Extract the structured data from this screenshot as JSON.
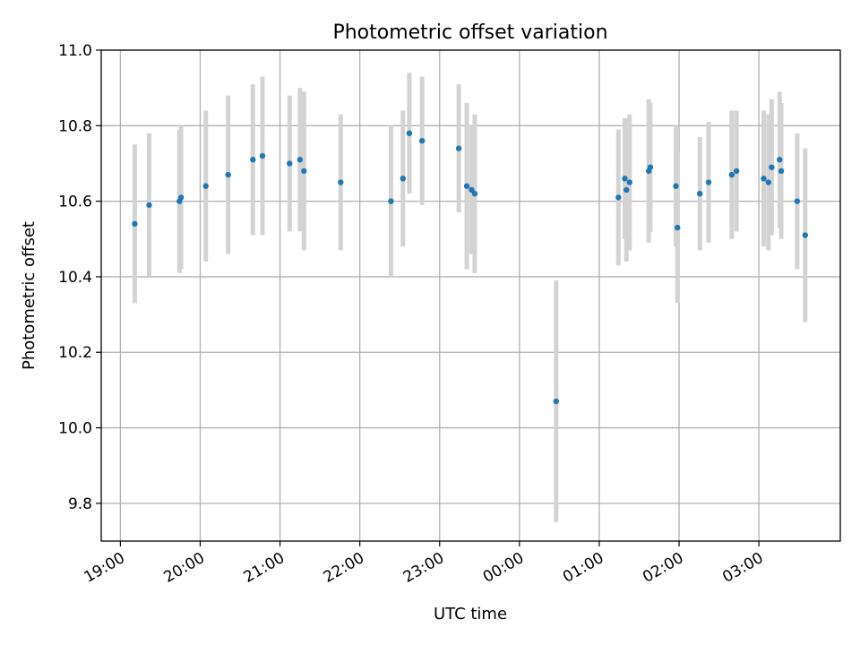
{
  "chart_data": {
    "type": "scatter",
    "title": "Photometric offset variation",
    "xlabel": "UTC time",
    "ylabel": "Photometric offset",
    "grid": true,
    "x_unit": "hours since 19:00 UTC",
    "xlim": [
      -0.24,
      9.02
    ],
    "ylim": [
      9.7,
      11.0
    ],
    "x_ticks": [
      {
        "value": 0,
        "label": "19:00"
      },
      {
        "value": 1,
        "label": "20:00"
      },
      {
        "value": 2,
        "label": "21:00"
      },
      {
        "value": 3,
        "label": "22:00"
      },
      {
        "value": 4,
        "label": "23:00"
      },
      {
        "value": 5,
        "label": "00:00"
      },
      {
        "value": 6,
        "label": "01:00"
      },
      {
        "value": 7,
        "label": "02:00"
      },
      {
        "value": 8,
        "label": "03:00"
      }
    ],
    "y_ticks": [
      {
        "value": 9.8,
        "label": "9.8"
      },
      {
        "value": 10.0,
        "label": "10.0"
      },
      {
        "value": 10.2,
        "label": "10.2"
      },
      {
        "value": 10.4,
        "label": "10.4"
      },
      {
        "value": 10.6,
        "label": "10.6"
      },
      {
        "value": 10.8,
        "label": "10.8"
      },
      {
        "value": 11.0,
        "label": "11.0"
      }
    ],
    "colors": {
      "point": "#1f77b4",
      "errorbar": "#d3d3d3"
    },
    "points": [
      {
        "x": 0.18,
        "y": 10.54,
        "err": 0.21
      },
      {
        "x": 0.36,
        "y": 10.59,
        "err": 0.19
      },
      {
        "x": 0.74,
        "y": 10.6,
        "err": 0.19
      },
      {
        "x": 0.76,
        "y": 10.61,
        "err": 0.19
      },
      {
        "x": 1.07,
        "y": 10.64,
        "err": 0.2
      },
      {
        "x": 1.35,
        "y": 10.67,
        "err": 0.21
      },
      {
        "x": 1.66,
        "y": 10.71,
        "err": 0.2
      },
      {
        "x": 1.78,
        "y": 10.72,
        "err": 0.21
      },
      {
        "x": 2.12,
        "y": 10.7,
        "err": 0.18
      },
      {
        "x": 2.25,
        "y": 10.71,
        "err": 0.19
      },
      {
        "x": 2.3,
        "y": 10.68,
        "err": 0.21
      },
      {
        "x": 2.76,
        "y": 10.65,
        "err": 0.18
      },
      {
        "x": 3.39,
        "y": 10.6,
        "err": 0.2
      },
      {
        "x": 3.54,
        "y": 10.66,
        "err": 0.18
      },
      {
        "x": 3.62,
        "y": 10.78,
        "err": 0.16
      },
      {
        "x": 3.78,
        "y": 10.76,
        "err": 0.17
      },
      {
        "x": 4.24,
        "y": 10.74,
        "err": 0.17
      },
      {
        "x": 4.34,
        "y": 10.64,
        "err": 0.22
      },
      {
        "x": 4.4,
        "y": 10.63,
        "err": 0.17
      },
      {
        "x": 4.44,
        "y": 10.62,
        "err": 0.21
      },
      {
        "x": 5.46,
        "y": 10.07,
        "err": 0.32
      },
      {
        "x": 6.24,
        "y": 10.61,
        "err": 0.18
      },
      {
        "x": 6.32,
        "y": 10.66,
        "err": 0.16
      },
      {
        "x": 6.34,
        "y": 10.63,
        "err": 0.19
      },
      {
        "x": 6.38,
        "y": 10.65,
        "err": 0.18
      },
      {
        "x": 6.62,
        "y": 10.68,
        "err": 0.19
      },
      {
        "x": 6.64,
        "y": 10.69,
        "err": 0.17
      },
      {
        "x": 6.96,
        "y": 10.64,
        "err": 0.16
      },
      {
        "x": 6.98,
        "y": 10.53,
        "err": 0.2
      },
      {
        "x": 7.26,
        "y": 10.62,
        "err": 0.15
      },
      {
        "x": 7.37,
        "y": 10.65,
        "err": 0.16
      },
      {
        "x": 7.66,
        "y": 10.67,
        "err": 0.17
      },
      {
        "x": 7.72,
        "y": 10.68,
        "err": 0.16
      },
      {
        "x": 8.06,
        "y": 10.66,
        "err": 0.18
      },
      {
        "x": 8.12,
        "y": 10.65,
        "err": 0.18
      },
      {
        "x": 8.16,
        "y": 10.69,
        "err": 0.18
      },
      {
        "x": 8.26,
        "y": 10.71,
        "err": 0.18
      },
      {
        "x": 8.28,
        "y": 10.68,
        "err": 0.18
      },
      {
        "x": 8.48,
        "y": 10.6,
        "err": 0.18
      },
      {
        "x": 8.58,
        "y": 10.51,
        "err": 0.23
      }
    ]
  }
}
